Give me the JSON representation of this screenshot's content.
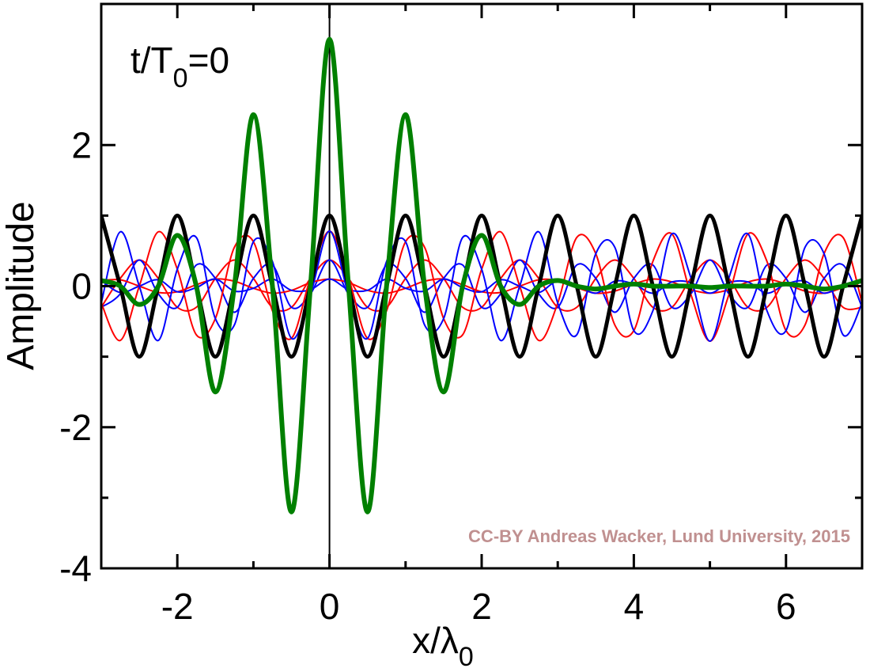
{
  "chart_data": {
    "type": "line",
    "annotation": {
      "text": "t/T",
      "sub": "0",
      "after": "=0"
    },
    "xlabel": {
      "text": "x/λ",
      "sub": "0"
    },
    "ylabel": "Amplitude",
    "credit": "CC-BY Andreas Wacker, Lund University, 2015",
    "credit_color": "#c09090",
    "xlim": [
      -3,
      7
    ],
    "ylim": [
      -4,
      4
    ],
    "xticks": [
      -2,
      0,
      2,
      4,
      6
    ],
    "yticks": [
      -4,
      -2,
      0,
      2
    ],
    "vline": 0,
    "x": [
      -3,
      -2.75,
      -2.5,
      -2.25,
      -2,
      -1.75,
      -1.5,
      -1.25,
      -1,
      -0.75,
      -0.5,
      -0.25,
      0,
      0.25,
      0.5,
      0.75,
      1,
      1.25,
      1.5,
      1.75,
      2,
      2.25,
      2.5,
      2.75,
      3,
      3.25,
      3.5,
      3.75,
      4,
      4.25,
      4.5,
      4.75,
      5,
      5.25,
      5.5,
      5.75,
      6,
      6.25,
      6.5,
      6.75,
      7
    ],
    "series": [
      {
        "color": "#ff0000",
        "width": 2,
        "values": [
          -0.3,
          0.11,
          0.37,
          0.11,
          -0.3,
          -0.3,
          0.11,
          0.37,
          0.11,
          -0.3,
          -0.3,
          0.11,
          0.37,
          0.11,
          -0.3,
          -0.3,
          0.11,
          0.37,
          0.11,
          -0.3,
          -0.3,
          0.11,
          0.37,
          0.11,
          -0.3,
          -0.3,
          0.11,
          0.37,
          0.11,
          -0.3,
          -0.3,
          0.11,
          0.37,
          0.11,
          -0.3,
          -0.3,
          0.11,
          0.37,
          0.11,
          -0.3,
          -0.3
        ]
      },
      {
        "color": "#0000ff",
        "width": 2,
        "values": [
          -0.3,
          -0.11,
          0.37,
          -0.11,
          -0.3,
          0.3,
          0.11,
          -0.37,
          0.11,
          0.3,
          -0.3,
          -0.11,
          0.37,
          -0.11,
          -0.3,
          0.3,
          0.11,
          -0.37,
          0.11,
          0.3,
          -0.3,
          -0.11,
          0.37,
          -0.11,
          -0.3,
          0.3,
          0.11,
          -0.37,
          0.11,
          0.3,
          -0.3,
          -0.11,
          0.37,
          -0.11,
          -0.3,
          0.3,
          0.11,
          -0.37,
          0.11,
          0.3,
          -0.3
        ]
      },
      {
        "color": "#ff0000",
        "width": 2,
        "values": [
          0.08,
          0.09,
          0,
          -0.09,
          -0.08,
          0.02,
          0.1,
          0.07,
          -0.03,
          -0.1,
          -0.06,
          0.05,
          0.1,
          0.05,
          -0.06,
          -0.1,
          -0.03,
          0.07,
          0.1,
          0.02,
          -0.08,
          -0.09,
          0,
          0.09,
          0.08,
          -0.02,
          -0.1,
          -0.07,
          0.03,
          0.1,
          0.06,
          -0.05,
          -0.1,
          -0.05,
          0.06,
          0.1,
          0.03,
          -0.07,
          -0.1,
          -0.02,
          0.08
        ]
      },
      {
        "color": "#0000ff",
        "width": 2,
        "values": [
          0.08,
          -0.09,
          0,
          0.09,
          -0.08,
          -0.02,
          0.1,
          -0.07,
          -0.03,
          0.1,
          -0.06,
          -0.05,
          0.1,
          -0.05,
          -0.06,
          0.1,
          -0.03,
          -0.07,
          0.1,
          -0.02,
          -0.08,
          0.09,
          0,
          -0.09,
          0.08,
          0.02,
          -0.1,
          0.07,
          0.03,
          -0.1,
          0.06,
          0.05,
          -0.1,
          0.05,
          0.06,
          -0.1,
          0.03,
          0.07,
          -0.1,
          0.02,
          0.08
        ]
      },
      {
        "color": "#ff0000",
        "width": 2,
        "values": [
          -0.24,
          -0.77,
          0,
          0.77,
          0.24,
          -0.69,
          -0.46,
          0.55,
          0.63,
          -0.35,
          -0.74,
          0.12,
          0.78,
          0.12,
          -0.74,
          -0.35,
          0.63,
          0.55,
          -0.46,
          -0.69,
          0.24,
          0.77,
          0,
          -0.77,
          -0.24,
          0.69,
          0.46,
          -0.55,
          -0.63,
          0.35,
          0.74,
          -0.12,
          -0.78,
          -0.12,
          0.74,
          0.35,
          -0.63,
          -0.55,
          0.46,
          0.69,
          -0.24
        ]
      },
      {
        "color": "#0000ff",
        "width": 2,
        "values": [
          -0.24,
          0.77,
          0,
          -0.77,
          0.24,
          0.69,
          -0.46,
          -0.55,
          0.63,
          0.35,
          -0.74,
          -0.12,
          0.78,
          -0.12,
          -0.74,
          0.35,
          0.63,
          -0.55,
          -0.46,
          0.69,
          0.24,
          -0.77,
          0,
          0.77,
          -0.24,
          -0.69,
          0.46,
          0.55,
          -0.63,
          -0.35,
          0.74,
          0.12,
          -0.78,
          0.12,
          0.74,
          -0.35,
          -0.63,
          0.55,
          0.46,
          -0.69,
          -0.24
        ]
      },
      {
        "color": "#000000",
        "width": 5,
        "values": [
          1,
          0,
          -1,
          0,
          1,
          0,
          -1,
          0,
          1,
          0,
          -1,
          0,
          1,
          0,
          -1,
          0,
          1,
          0,
          -1,
          0,
          1,
          0,
          -1,
          0,
          1,
          0,
          -1,
          0,
          1,
          0,
          -1,
          0,
          1,
          0,
          -1,
          0,
          1,
          0,
          -1,
          0,
          1
        ]
      },
      {
        "color": "#008000",
        "width": 6,
        "values": [
          0.08,
          0,
          -0.26,
          0,
          0.72,
          0,
          -1.5,
          0,
          2.43,
          0,
          -3.2,
          0,
          3.5,
          0,
          -3.2,
          0,
          2.43,
          0,
          -1.5,
          0,
          0.72,
          0,
          -0.26,
          0,
          0.08,
          0,
          -0.04,
          0,
          0.03,
          0,
          0,
          0,
          -0.02,
          0,
          0,
          0,
          0.03,
          0,
          -0.04,
          0,
          0.08
        ]
      }
    ]
  }
}
